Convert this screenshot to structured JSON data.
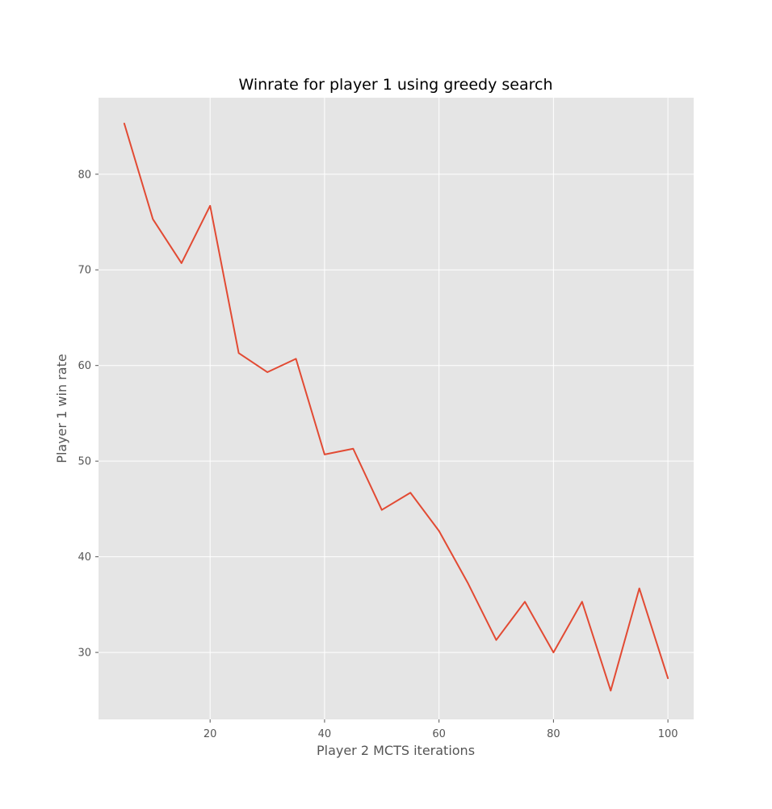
{
  "chart_data": {
    "type": "line",
    "title": "Winrate for player 1 using greedy search",
    "xlabel": "Player 2 MCTS iterations",
    "ylabel": "Player 1 win rate",
    "xlim": [
      0.5,
      104.5
    ],
    "ylim": [
      23,
      88
    ],
    "xticks": [
      20,
      40,
      60,
      80,
      100
    ],
    "yticks": [
      30,
      40,
      50,
      60,
      70,
      80
    ],
    "grid": true,
    "background": "#e5e5e5",
    "grid_color": "#ffffff",
    "series": [
      {
        "color": "#e24a33",
        "x": [
          5,
          10,
          15,
          20,
          25,
          30,
          35,
          40,
          45,
          50,
          55,
          60,
          65,
          70,
          75,
          80,
          85,
          90,
          95,
          100
        ],
        "y": [
          85.3,
          75.3,
          70.7,
          76.7,
          61.3,
          59.3,
          60.7,
          50.7,
          51.3,
          44.9,
          46.7,
          42.7,
          37.3,
          31.3,
          35.3,
          30.0,
          35.3,
          26.0,
          36.7,
          27.3
        ]
      }
    ]
  }
}
